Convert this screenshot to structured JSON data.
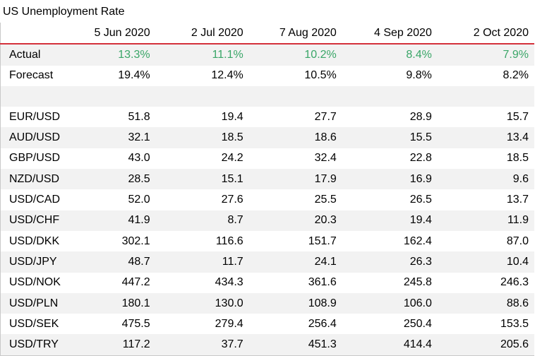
{
  "title": "US Unemployment Rate",
  "colors": {
    "header_rule": "#d4313b",
    "actual_text": "#3aa668",
    "stripe": "#f2f2f2"
  },
  "columns": [
    "5 Jun 2020",
    "2 Jul 2020",
    "7 Aug 2020",
    "4 Sep 2020",
    "2 Oct 2020"
  ],
  "rows": [
    {
      "label": "Actual",
      "values": [
        "13.3%",
        "11.1%",
        "10.2%",
        "8.4%",
        "7.9%"
      ],
      "highlight": true
    },
    {
      "label": "Forecast",
      "values": [
        "19.4%",
        "12.4%",
        "10.5%",
        "9.8%",
        "8.2%"
      ]
    },
    {
      "label": "",
      "values": [
        "",
        "",
        "",
        "",
        ""
      ],
      "spacer": true
    },
    {
      "label": "EUR/USD",
      "values": [
        "51.8",
        "19.4",
        "27.7",
        "28.9",
        "15.7"
      ]
    },
    {
      "label": "AUD/USD",
      "values": [
        "32.1",
        "18.5",
        "18.6",
        "15.5",
        "13.4"
      ]
    },
    {
      "label": "GBP/USD",
      "values": [
        "43.0",
        "24.2",
        "32.4",
        "22.8",
        "18.5"
      ]
    },
    {
      "label": "NZD/USD",
      "values": [
        "28.5",
        "15.1",
        "17.9",
        "16.9",
        "9.6"
      ]
    },
    {
      "label": "USD/CAD",
      "values": [
        "52.0",
        "27.6",
        "25.5",
        "26.5",
        "13.7"
      ]
    },
    {
      "label": "USD/CHF",
      "values": [
        "41.9",
        "8.7",
        "20.3",
        "19.4",
        "11.9"
      ]
    },
    {
      "label": "USD/DKK",
      "values": [
        "302.1",
        "116.6",
        "151.7",
        "162.4",
        "87.0"
      ]
    },
    {
      "label": "USD/JPY",
      "values": [
        "48.7",
        "11.7",
        "24.1",
        "26.3",
        "10.4"
      ]
    },
    {
      "label": "USD/NOK",
      "values": [
        "447.2",
        "434.3",
        "361.6",
        "245.8",
        "246.3"
      ]
    },
    {
      "label": "USD/PLN",
      "values": [
        "180.1",
        "130.0",
        "108.9",
        "106.0",
        "88.6"
      ]
    },
    {
      "label": "USD/SEK",
      "values": [
        "475.5",
        "279.4",
        "256.4",
        "250.4",
        "153.5"
      ]
    },
    {
      "label": "USD/TRY",
      "values": [
        "117.2",
        "37.7",
        "451.3",
        "414.4",
        "205.6"
      ]
    }
  ]
}
